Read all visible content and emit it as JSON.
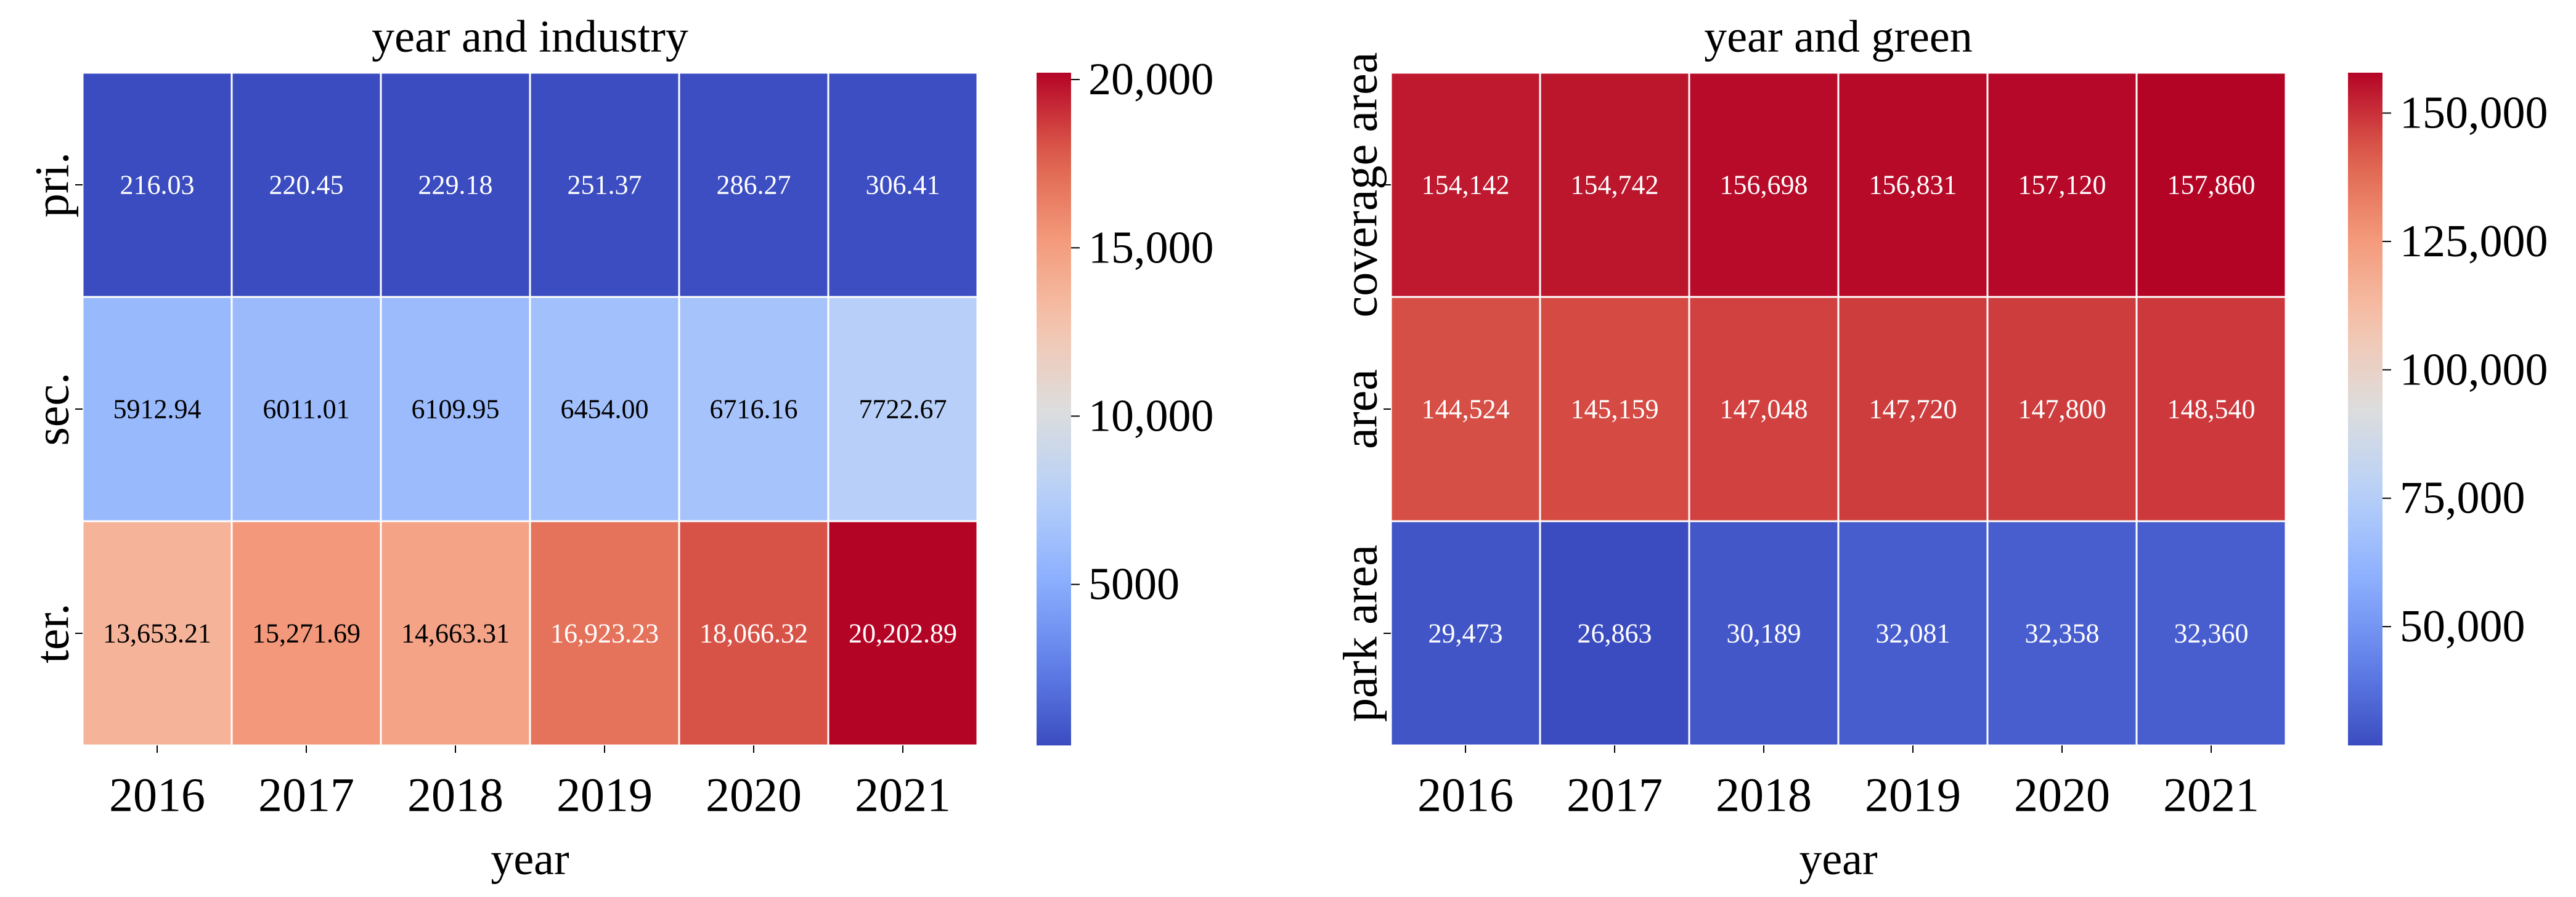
{
  "chart_data": [
    {
      "type": "heatmap",
      "title": "year and industry",
      "xlabel": "year",
      "ylabel": "",
      "x": [
        "2016",
        "2017",
        "2018",
        "2019",
        "2020",
        "2021"
      ],
      "y": [
        "pri.",
        "sec.",
        "ter."
      ],
      "values": [
        [
          216.03,
          220.45,
          229.18,
          251.37,
          286.27,
          306.41
        ],
        [
          5912.94,
          6011.01,
          6109.95,
          6454.0,
          6716.16,
          7722.67
        ],
        [
          13653.21,
          15271.69,
          14663.31,
          16923.23,
          18066.32,
          20202.89
        ]
      ],
      "labels": [
        [
          "216.03",
          "220.45",
          "229.18",
          "251.37",
          "286.27",
          "306.41"
        ],
        [
          "5912.94",
          "6011.01",
          "6109.95",
          "6454.00",
          "6716.16",
          "7722.67"
        ],
        [
          "13,653.21",
          "15,271.69",
          "14,663.31",
          "16,923.23",
          "18,066.32",
          "20,202.89"
        ]
      ],
      "colorbar": {
        "colormap": "coolwarm",
        "range": [
          216.03,
          20202.89
        ],
        "ticks": [
          5000,
          10000,
          15000,
          20000
        ],
        "tick_labels": [
          "5000",
          "10,000",
          "15,000",
          "20,000"
        ]
      }
    },
    {
      "type": "heatmap",
      "title": "year and green",
      "xlabel": "year",
      "ylabel": "",
      "x": [
        "2016",
        "2017",
        "2018",
        "2019",
        "2020",
        "2021"
      ],
      "y": [
        "coverage area",
        "area",
        "park area"
      ],
      "values": [
        [
          154142,
          154742,
          156698,
          156831,
          157120,
          157860
        ],
        [
          144524,
          145159,
          147048,
          147720,
          147800,
          148540
        ],
        [
          29473,
          26863,
          30189,
          32081,
          32358,
          32360
        ]
      ],
      "labels": [
        [
          "154,142",
          "154,742",
          "156,698",
          "156,831",
          "157,120",
          "157,860"
        ],
        [
          "144,524",
          "145,159",
          "147,048",
          "147,720",
          "147,800",
          "148,540"
        ],
        [
          "29,473",
          "26,863",
          "30,189",
          "32,081",
          "32,358",
          "32,360"
        ]
      ],
      "colorbar": {
        "colormap": "coolwarm",
        "range": [
          26863,
          157860
        ],
        "ticks": [
          50000,
          75000,
          100000,
          125000,
          150000
        ],
        "tick_labels": [
          "50,000",
          "75,000",
          "100,000",
          "125,000",
          "150,000"
        ]
      }
    }
  ]
}
